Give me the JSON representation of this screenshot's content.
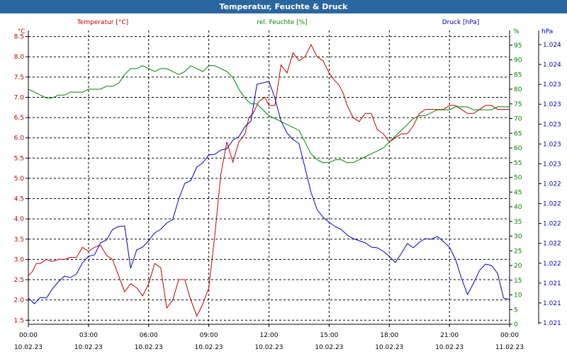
{
  "window": {
    "title": "Temperatur, Feuchte & Druck"
  },
  "colors": {
    "temperature": "#c00000",
    "humidity": "#008000",
    "pressure": "#0000c0",
    "titlebar": "#2a66a0",
    "grid": "#000000"
  },
  "chart_data": {
    "type": "line",
    "title": "Temperatur, Feuchte & Druck",
    "grid": true,
    "x_ticks": [
      {
        "time": "00:00",
        "date": "10.02.23"
      },
      {
        "time": "03:00",
        "date": "10.02.23"
      },
      {
        "time": "06:00",
        "date": "10.02.23"
      },
      {
        "time": "09:00",
        "date": "10.02.23"
      },
      {
        "time": "12:00",
        "date": "10.02.23"
      },
      {
        "time": "15:00",
        "date": "10.02.23"
      },
      {
        "time": "18:00",
        "date": "10.02.23"
      },
      {
        "time": "21:00",
        "date": "10.02.23"
      },
      {
        "time": "00:00",
        "date": "11.02.23"
      }
    ],
    "x_range": [
      "10.02.23 00:00",
      "11.02.23 00:00"
    ],
    "axes": {
      "temperature": {
        "label": "Temperatur [°C]",
        "unit": "°C",
        "ylim": [
          1.4,
          8.65
        ],
        "ticks": [
          "8.5",
          "8.0",
          "7.5",
          "7.0",
          "6.5",
          "6.0",
          "5.5",
          "5.0",
          "4.5",
          "4.0",
          "3.5",
          "3.0",
          "2.5",
          "2.0",
          "1.5"
        ]
      },
      "humidity": {
        "label": "rel. Feuchte [%]",
        "unit": "%",
        "ylim": [
          0,
          100
        ],
        "ticks": [
          "95",
          "90",
          "85",
          "80",
          "75",
          "70",
          "65",
          "60",
          "55",
          "50",
          "45",
          "40",
          "35",
          "30",
          "25",
          "20",
          "15",
          "10",
          "5",
          "0"
        ]
      },
      "pressure": {
        "label": "Druck [hPa]",
        "unit": "hPa",
        "ticks": [
          "1.024",
          "1.024",
          "1.023",
          "1.023",
          "1.023",
          "1.023",
          "1.023",
          "1.022",
          "1.022",
          "1.022",
          "1.022",
          "1.022",
          "1.021",
          "1.021",
          "1.021"
        ]
      }
    },
    "series": [
      {
        "name": "Temperatur [°C]",
        "axis": "temperature",
        "x": [
          0,
          0.2,
          0.4,
          0.6,
          0.9,
          1.2,
          1.5,
          1.8,
          2.1,
          2.4,
          2.7,
          3.0,
          3.3,
          3.6,
          3.9,
          4.2,
          4.5,
          4.8,
          5.1,
          5.4,
          5.7,
          6.0,
          6.3,
          6.6,
          6.9,
          7.2,
          7.5,
          7.8,
          8.1,
          8.4,
          8.7,
          9.0,
          9.3,
          9.6,
          9.9,
          10.2,
          10.5,
          10.8,
          11.0,
          11.2,
          11.5,
          11.8,
          12.0,
          12.3,
          12.6,
          12.9,
          13.2,
          13.5,
          13.8,
          14.1,
          14.4,
          14.7,
          15.0,
          15.3,
          15.5,
          15.7,
          15.9,
          16.2,
          16.5,
          16.8,
          17.1,
          17.4,
          17.7,
          18.0,
          18.3,
          18.6,
          18.9,
          19.2,
          19.5,
          19.8,
          20.1,
          20.4,
          20.7,
          21.0,
          21.3,
          21.6,
          21.9,
          22.2,
          22.5,
          22.8,
          23.1,
          23.4,
          23.7,
          24.0
        ],
        "values": [
          2.6,
          2.7,
          2.9,
          2.9,
          3.0,
          2.95,
          3.0,
          3.0,
          3.05,
          3.05,
          3.3,
          3.2,
          3.3,
          3.35,
          3.1,
          3.0,
          2.6,
          2.2,
          2.4,
          2.3,
          2.1,
          2.4,
          2.9,
          2.8,
          1.8,
          2.0,
          2.5,
          2.5,
          2.0,
          1.6,
          1.9,
          2.3,
          3.6,
          5.1,
          5.9,
          5.4,
          5.9,
          6.1,
          6.5,
          6.6,
          6.9,
          7.0,
          6.8,
          6.8,
          7.8,
          7.6,
          8.1,
          7.9,
          8.0,
          8.3,
          8.0,
          7.9,
          7.6,
          7.4,
          7.3,
          7.1,
          6.8,
          6.5,
          6.4,
          6.6,
          6.6,
          6.2,
          6.1,
          5.9,
          6.0,
          6.1,
          6.1,
          6.3,
          6.6,
          6.7,
          6.7,
          6.7,
          6.7,
          6.8,
          6.8,
          6.7,
          6.6,
          6.6,
          6.7,
          6.8,
          6.8,
          6.7,
          6.7,
          6.7
        ]
      },
      {
        "name": "rel. Feuchte [%]",
        "axis": "humidity",
        "x": [
          0,
          0.3,
          0.6,
          0.9,
          1.2,
          1.5,
          1.8,
          2.1,
          2.4,
          2.7,
          3.0,
          3.3,
          3.6,
          3.9,
          4.2,
          4.5,
          4.8,
          5.1,
          5.4,
          5.7,
          6.0,
          6.3,
          6.6,
          6.9,
          7.2,
          7.5,
          7.8,
          8.1,
          8.4,
          8.7,
          9.0,
          9.3,
          9.6,
          9.9,
          10.2,
          10.5,
          10.8,
          11.1,
          11.4,
          11.7,
          12.0,
          12.3,
          12.6,
          12.9,
          13.2,
          13.5,
          13.8,
          14.1,
          14.4,
          14.7,
          15.0,
          15.3,
          15.6,
          15.9,
          16.2,
          16.5,
          16.8,
          17.1,
          17.4,
          17.7,
          18.0,
          18.3,
          18.6,
          18.9,
          19.2,
          19.5,
          19.8,
          20.1,
          20.4,
          20.7,
          21.0,
          21.3,
          21.6,
          21.9,
          22.2,
          22.5,
          22.8,
          23.1,
          23.4,
          23.7,
          24.0
        ],
        "values": [
          80,
          79,
          78,
          77,
          77,
          78,
          78,
          79,
          79,
          79,
          80,
          80,
          80,
          81,
          81,
          82,
          85,
          87,
          87,
          88,
          87,
          86,
          87,
          87,
          86,
          85,
          86,
          88,
          87,
          86,
          88,
          88,
          87,
          86,
          84,
          80,
          77,
          75,
          75,
          73,
          71,
          70,
          69,
          68,
          67,
          66,
          62,
          58,
          56,
          55,
          55,
          56,
          56,
          55,
          55,
          56,
          57,
          58,
          59,
          60,
          62,
          64,
          66,
          68,
          70,
          71,
          71,
          72,
          73,
          73,
          73,
          74,
          74,
          74,
          73,
          73,
          73,
          73,
          74,
          74,
          74
        ]
      },
      {
        "name": "Druck [hPa]",
        "axis": "pressure",
        "x": [
          0,
          0.3,
          0.6,
          0.9,
          1.2,
          1.5,
          1.8,
          2.1,
          2.4,
          2.7,
          3.0,
          3.3,
          3.6,
          3.9,
          4.2,
          4.5,
          4.8,
          5.1,
          5.4,
          5.7,
          6.0,
          6.3,
          6.6,
          6.9,
          7.2,
          7.5,
          7.8,
          8.1,
          8.4,
          8.7,
          9.0,
          9.3,
          9.6,
          9.9,
          10.2,
          10.5,
          10.8,
          11.1,
          11.4,
          11.7,
          12.0,
          12.3,
          12.6,
          12.9,
          13.2,
          13.5,
          13.8,
          14.1,
          14.4,
          14.7,
          15.0,
          15.3,
          15.6,
          15.9,
          16.2,
          16.5,
          16.8,
          17.1,
          17.4,
          17.7,
          18.0,
          18.3,
          18.6,
          18.9,
          19.2,
          19.5,
          19.8,
          20.1,
          20.4,
          20.7,
          21.0,
          21.3,
          21.6,
          21.9,
          22.2,
          22.5,
          22.8,
          23.1,
          23.4,
          23.7,
          24.0
        ],
        "values": [
          402,
          410,
          401,
          402,
          389,
          379,
          371,
          373,
          368,
          352,
          343,
          341,
          324,
          320,
          305,
          301,
          300,
          360,
          334,
          330,
          321,
          310,
          305,
          296,
          291,
          262,
          240,
          236,
          217,
          211,
          200,
          199,
          193,
          191,
          179,
          174,
          160,
          152,
          100,
          98,
          96,
          120,
          152,
          169,
          178,
          184,
          218,
          253,
          277,
          288,
          295,
          301,
          305,
          313,
          318,
          321,
          324,
          330,
          331,
          336,
          343,
          352,
          339,
          325,
          331,
          323,
          318,
          319,
          315,
          322,
          330,
          347,
          374,
          397,
          381,
          363,
          354,
          356,
          367,
          402,
          404
        ]
      }
    ]
  }
}
